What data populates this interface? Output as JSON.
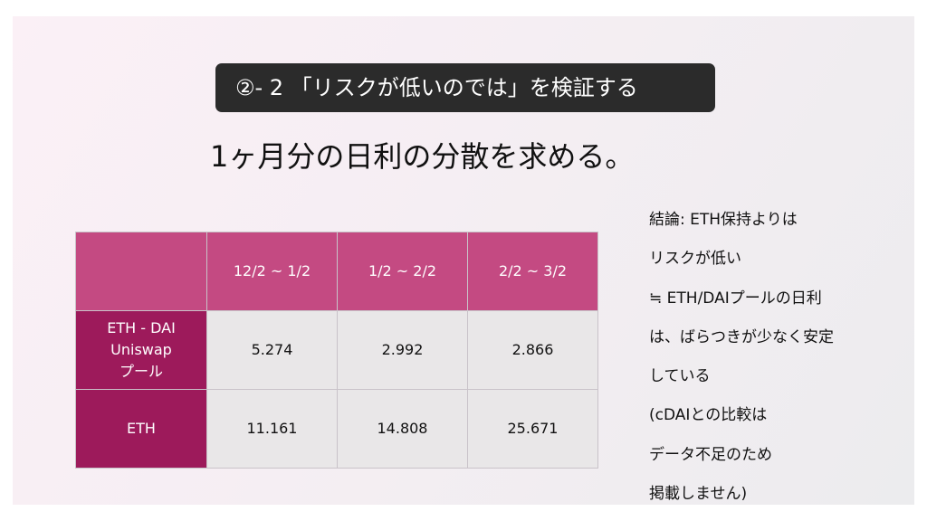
{
  "banner": {
    "text": "②- 2 「リスクが低いのでは」を検証する"
  },
  "heading": {
    "text": "1ヶ月分の日利の分散を求める。"
  },
  "table": {
    "headers": [
      "",
      "12/2 ~ 1/2",
      "1/2 ~ 2/2",
      "2/2 ~ 3/2"
    ],
    "rows": [
      {
        "label_lines": [
          "ETH - DAI",
          "Uniswap",
          "プール"
        ],
        "values": [
          "5.274",
          "2.992",
          "2.866"
        ]
      },
      {
        "label_lines": [
          "ETH"
        ],
        "values": [
          "11.161",
          "14.808",
          "25.671"
        ]
      }
    ]
  },
  "notes": {
    "lines": [
      "結論: ETH保持よりは",
      "リスクが低い",
      "≒ ETH/DAIプールの日利",
      "は、ばらつきが少なく安定",
      "している",
      "(cDAIとの比較は",
      "データ不足のため",
      "掲載しません)"
    ]
  },
  "colors": {
    "banner_bg": "#2b2b2b",
    "header_bg": "#c44a82",
    "row_label_bg": "#9d1a5b",
    "cell_bg": "#e9e7e8"
  }
}
